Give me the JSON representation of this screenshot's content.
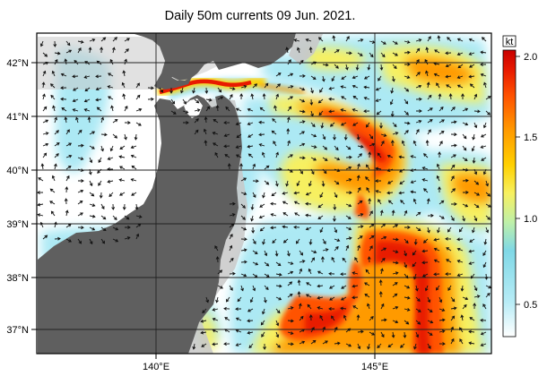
{
  "title": "Daily 50m currents 09 Jun. 2021.",
  "map": {
    "lat_labels": [
      "42°N",
      "41°N",
      "40°N",
      "39°N",
      "38°N",
      "37°N"
    ],
    "lon_labels": [
      "140°E",
      "145°E"
    ]
  },
  "colorbar": {
    "unit": "kt",
    "labels": [
      "2.0",
      "1.5",
      "1.0",
      "0.5"
    ],
    "colors": [
      "#ffffff",
      "#a8e8f4",
      "#7fd8e6",
      "#bff0a8",
      "#f7f060",
      "#ffd000",
      "#ff9a00",
      "#ff5200",
      "#e81a00",
      "#c80000"
    ]
  },
  "colors": {
    "land": "#5f5f5f",
    "shelf": "#c8c8c8",
    "water": "#ffffff",
    "grid": "#222222"
  }
}
